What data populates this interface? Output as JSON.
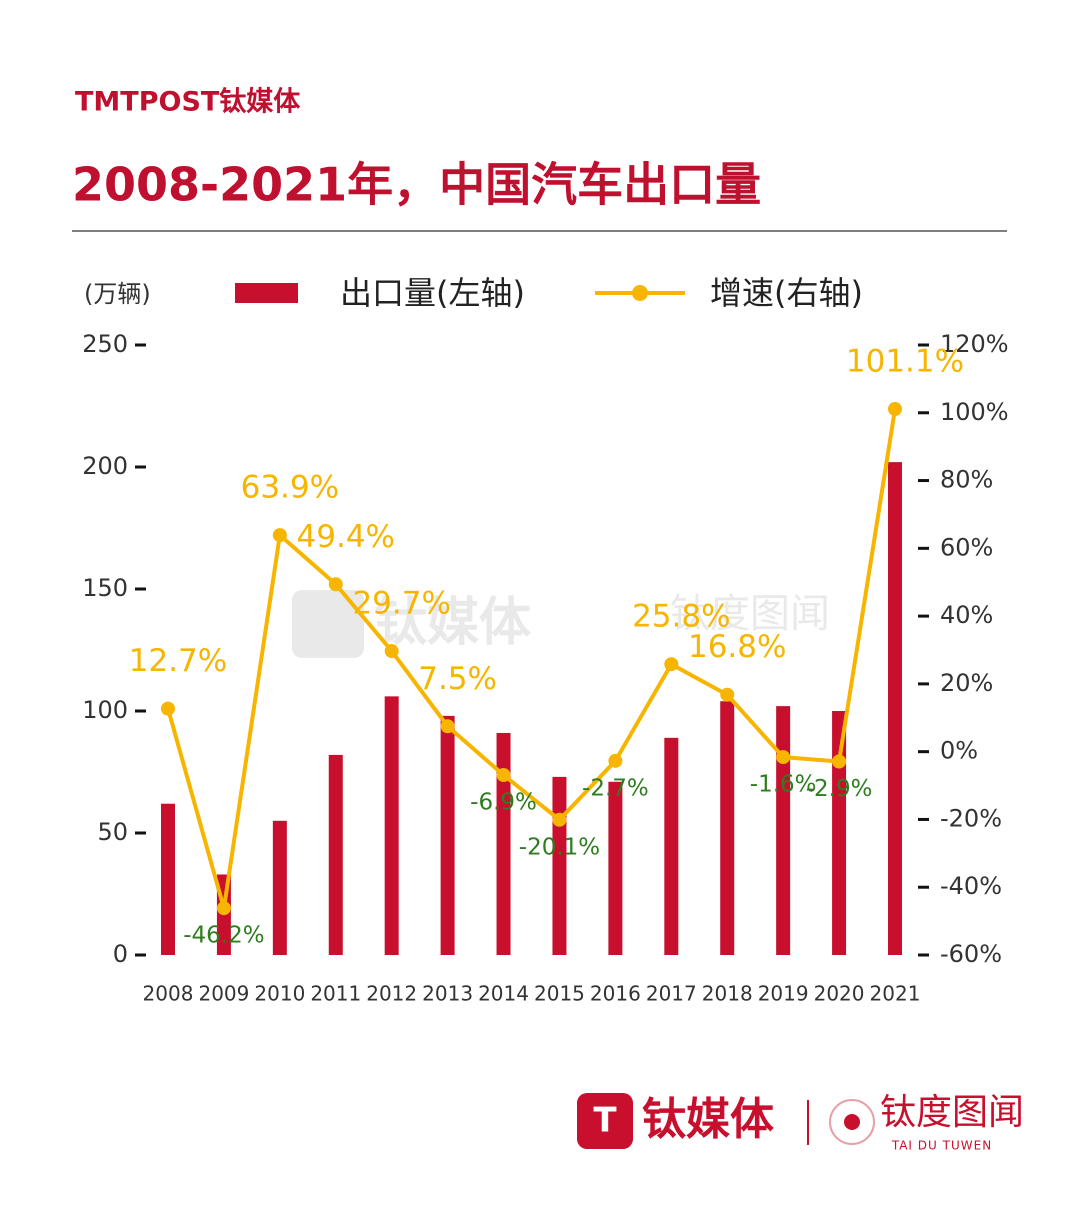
{
  "header": {
    "logo": "TMTPOST钛媒体"
  },
  "chart_data": {
    "type": "combo",
    "title": "2008-2021年，中国汽车出口量",
    "y_label": "(万辆)",
    "categories": [
      "2008",
      "2009",
      "2010",
      "2011",
      "2012",
      "2013",
      "2014",
      "2015",
      "2016",
      "2017",
      "2018",
      "2019",
      "2020",
      "2021"
    ],
    "series": [
      {
        "name": "出口量(左轴)",
        "type": "bar",
        "color": "#c8102e",
        "values": [
          62,
          33,
          55,
          82,
          106,
          98,
          91,
          73,
          71,
          89,
          104,
          102,
          100,
          202
        ]
      },
      {
        "name": "增速(右轴)",
        "type": "line",
        "axis": "y2",
        "color": "#f7b500",
        "values": [
          12.7,
          -46.2,
          63.9,
          49.4,
          29.7,
          7.5,
          -6.9,
          -20.1,
          -2.7,
          25.8,
          16.8,
          -1.6,
          -2.9,
          101.1
        ],
        "value_labels": [
          "12.7%",
          "-46.2%",
          "63.9%",
          "49.4%",
          "29.7%",
          "7.5%",
          "-6.9%",
          "-20.1%",
          "-2.7%",
          "25.8%",
          "16.8%",
          "-1.6%",
          "-2.9%",
          "101.1%"
        ]
      }
    ],
    "ylim": [
      0,
      250
    ],
    "yticks": [
      0,
      50,
      100,
      150,
      200,
      250
    ],
    "y2lim": [
      -60,
      120
    ],
    "y2ticks": [
      {
        "value": -60,
        "label": "-60%"
      },
      {
        "value": -40,
        "label": "-40%"
      },
      {
        "value": -20,
        "label": "-20%"
      },
      {
        "value": 0,
        "label": "0%"
      },
      {
        "value": 20,
        "label": "20%"
      },
      {
        "value": 40,
        "label": "40%"
      },
      {
        "value": 60,
        "label": "60%"
      },
      {
        "value": 80,
        "label": "80%"
      },
      {
        "value": 100,
        "label": "100%"
      },
      {
        "value": 120,
        "label": "120%"
      }
    ]
  },
  "footer": {
    "brand": "钛媒体",
    "sub_brand": "钛度图闻",
    "sub_brand_en": "TAI DU TUWEN"
  }
}
